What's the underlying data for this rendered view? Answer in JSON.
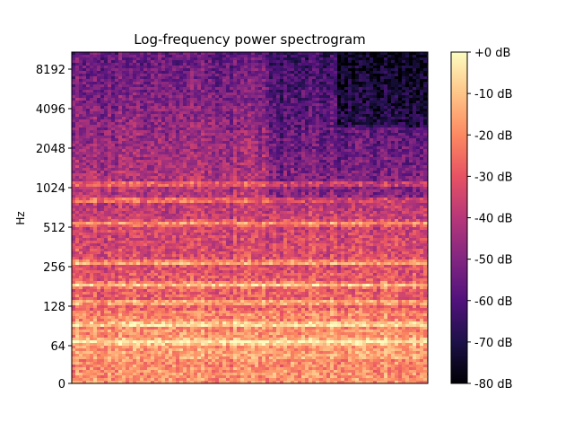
{
  "chart_data": {
    "type": "heatmap",
    "title": "Log-frequency power spectrogram",
    "xlabel": "",
    "ylabel": "Hz",
    "y_scale": "symlog",
    "y_ticks": [
      "0",
      "64",
      "128",
      "256",
      "512",
      "1024",
      "2048",
      "4096",
      "8192"
    ],
    "x_ticks": [],
    "colorbar": {
      "colormap": "magma",
      "range_db": [
        -80,
        0
      ],
      "ticks": [
        "+0 dB",
        "-10 dB",
        "-20 dB",
        "-30 dB",
        "-40 dB",
        "-50 dB",
        "-60 dB",
        "-70 dB",
        "-80 dB"
      ]
    },
    "harmonic_bands_hz": [
      70,
      95,
      140,
      190,
      280,
      560,
      840,
      1120
    ],
    "colors": [
      "#000004",
      "#1d1147",
      "#51127c",
      "#822681",
      "#b73779",
      "#e75263",
      "#fc8961",
      "#fec488",
      "#fcfdbf"
    ]
  }
}
